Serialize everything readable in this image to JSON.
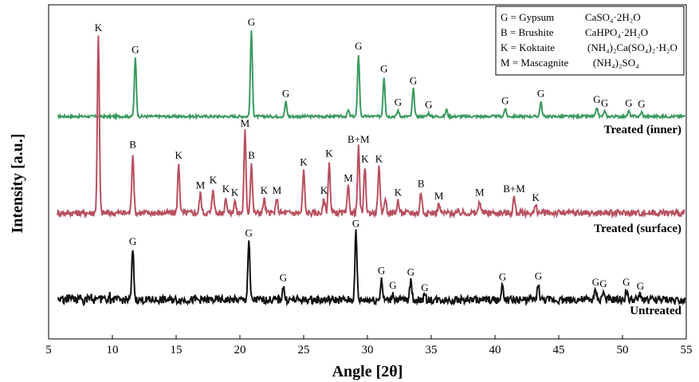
{
  "chart_data": {
    "type": "line",
    "title": "",
    "xlabel": "Angle [2θ]",
    "ylabel": "Intensity [a.u.]",
    "xlim": [
      5,
      55
    ],
    "xticks": [
      5,
      10,
      15,
      20,
      25,
      30,
      35,
      40,
      45,
      50,
      55
    ],
    "grid": false,
    "legend_position": "top-right",
    "legend": [
      {
        "key": "G = Gypsum",
        "formula": "CaSO₄·2H₂O"
      },
      {
        "key": "B = Brushite",
        "formula": "CaHPO₄·2H₂O"
      },
      {
        "key": "K = Koktaite",
        "formula": "(NH₄)₂Ca(SO₄)₂·H₂O"
      },
      {
        "key": "M = Mascagnite",
        "formula": "(NH₄)₂SO₄"
      }
    ],
    "series": [
      {
        "name": "Treated (inner)",
        "color": "#3a9a5e",
        "baseline": 0.0,
        "noise": 0.05,
        "peaks": [
          {
            "x": 11.8,
            "h": 0.68,
            "label": "G"
          },
          {
            "x": 20.9,
            "h": 1.0,
            "label": "G"
          },
          {
            "x": 23.6,
            "h": 0.17,
            "label": "G"
          },
          {
            "x": 28.5,
            "h": 0.07
          },
          {
            "x": 29.3,
            "h": 0.72,
            "label": "G"
          },
          {
            "x": 31.3,
            "h": 0.46,
            "label": "G"
          },
          {
            "x": 32.4,
            "h": 0.07,
            "label": "G"
          },
          {
            "x": 33.6,
            "h": 0.32,
            "label": "G"
          },
          {
            "x": 34.8,
            "h": 0.04,
            "label": "G"
          },
          {
            "x": 36.2,
            "h": 0.08
          },
          {
            "x": 40.8,
            "h": 0.09,
            "label": "G"
          },
          {
            "x": 43.6,
            "h": 0.17,
            "label": "G"
          },
          {
            "x": 48.0,
            "h": 0.1,
            "label": "G"
          },
          {
            "x": 48.6,
            "h": 0.06,
            "label": "G"
          },
          {
            "x": 50.5,
            "h": 0.06,
            "label": "G"
          },
          {
            "x": 51.5,
            "h": 0.05,
            "label": "G"
          }
        ]
      },
      {
        "name": "Treated (surface)",
        "color": "#b8505f",
        "baseline": 0.0,
        "noise": 0.06,
        "peaks": [
          {
            "x": 8.9,
            "h": 1.0,
            "label": "K"
          },
          {
            "x": 11.6,
            "h": 0.34,
            "label": "B"
          },
          {
            "x": 15.2,
            "h": 0.28,
            "label": "K"
          },
          {
            "x": 16.9,
            "h": 0.11,
            "label": "M"
          },
          {
            "x": 17.9,
            "h": 0.14,
            "label": "K"
          },
          {
            "x": 18.9,
            "h": 0.09,
            "label": "K"
          },
          {
            "x": 19.6,
            "h": 0.07,
            "label": "K"
          },
          {
            "x": 20.4,
            "h": 0.46,
            "label": "M"
          },
          {
            "x": 20.9,
            "h": 0.28,
            "label": "B"
          },
          {
            "x": 21.9,
            "h": 0.08,
            "label": "K"
          },
          {
            "x": 22.9,
            "h": 0.08,
            "label": "M"
          },
          {
            "x": 25.0,
            "h": 0.24,
            "label": "K"
          },
          {
            "x": 26.6,
            "h": 0.08,
            "label": "K"
          },
          {
            "x": 27.0,
            "h": 0.29,
            "label": "K"
          },
          {
            "x": 28.5,
            "h": 0.15,
            "label": "M"
          },
          {
            "x": 29.3,
            "h": 0.37,
            "label": "B+M"
          },
          {
            "x": 29.8,
            "h": 0.26,
            "label": "K"
          },
          {
            "x": 30.9,
            "h": 0.26,
            "label": "K"
          },
          {
            "x": 31.4,
            "h": 0.09
          },
          {
            "x": 32.4,
            "h": 0.07,
            "label": "K"
          },
          {
            "x": 34.2,
            "h": 0.12,
            "label": "B"
          },
          {
            "x": 35.6,
            "h": 0.05,
            "label": "M"
          },
          {
            "x": 38.8,
            "h": 0.07,
            "label": "M"
          },
          {
            "x": 41.5,
            "h": 0.09,
            "label": "B+M"
          },
          {
            "x": 43.2,
            "h": 0.04,
            "label": "K"
          }
        ]
      },
      {
        "name": "Untreated",
        "color": "#111111",
        "baseline": 0.0,
        "noise": 0.08,
        "peaks": [
          {
            "x": 11.6,
            "h": 0.62,
            "label": "G"
          },
          {
            "x": 20.7,
            "h": 0.72,
            "label": "G"
          },
          {
            "x": 23.4,
            "h": 0.17,
            "label": "G"
          },
          {
            "x": 29.1,
            "h": 0.84,
            "label": "G"
          },
          {
            "x": 31.1,
            "h": 0.26,
            "label": "G"
          },
          {
            "x": 32.0,
            "h": 0.08,
            "label": "G"
          },
          {
            "x": 33.4,
            "h": 0.24,
            "label": "G"
          },
          {
            "x": 34.5,
            "h": 0.05,
            "label": "G"
          },
          {
            "x": 40.6,
            "h": 0.18,
            "label": "G"
          },
          {
            "x": 43.4,
            "h": 0.19,
            "label": "G"
          },
          {
            "x": 47.9,
            "h": 0.12,
            "label": "G"
          },
          {
            "x": 48.5,
            "h": 0.1,
            "label": "G"
          },
          {
            "x": 50.3,
            "h": 0.12,
            "label": "G"
          },
          {
            "x": 51.4,
            "h": 0.07,
            "label": "G"
          }
        ]
      }
    ]
  }
}
